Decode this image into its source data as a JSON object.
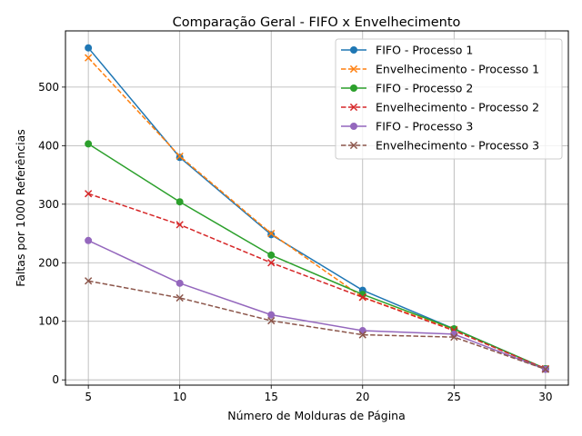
{
  "chart_data": {
    "type": "line",
    "title": "Comparação Geral - FIFO x Envelhecimento",
    "xlabel": "Número de Molduras de Página",
    "ylabel": "Faltas por 1000 Referências",
    "x": [
      5,
      10,
      15,
      20,
      25,
      30
    ],
    "xlim": [
      3.75,
      31.25
    ],
    "ylim": [
      -9,
      596
    ],
    "xticks": [
      5,
      10,
      15,
      20,
      25,
      30
    ],
    "yticks": [
      0,
      100,
      200,
      300,
      400,
      500
    ],
    "grid": true,
    "legend_position": "top-right",
    "series": [
      {
        "name": "FIFO - Processo 1",
        "values": [
          567,
          380,
          248,
          153,
          87,
          19
        ],
        "color": "#1f77b4",
        "linestyle": "solid",
        "marker": "circle"
      },
      {
        "name": "Envelhecimento - Processo 1",
        "values": [
          550,
          382,
          250,
          141,
          86,
          19
        ],
        "color": "#ff7f0e",
        "linestyle": "dashed",
        "marker": "x"
      },
      {
        "name": "FIFO - Processo 2",
        "values": [
          403,
          304,
          213,
          146,
          87,
          19
        ],
        "color": "#2ca02c",
        "linestyle": "solid",
        "marker": "circle"
      },
      {
        "name": "Envelhecimento - Processo 2",
        "values": [
          318,
          265,
          200,
          141,
          84,
          19
        ],
        "color": "#d62728",
        "linestyle": "dashed",
        "marker": "x"
      },
      {
        "name": "FIFO - Processo 3",
        "values": [
          238,
          165,
          111,
          84,
          78,
          18
        ],
        "color": "#9467bd",
        "linestyle": "solid",
        "marker": "circle"
      },
      {
        "name": "Envelhecimento - Processo 3",
        "values": [
          169,
          140,
          101,
          77,
          73,
          18
        ],
        "color": "#8c564b",
        "linestyle": "dashed",
        "marker": "x"
      }
    ]
  }
}
